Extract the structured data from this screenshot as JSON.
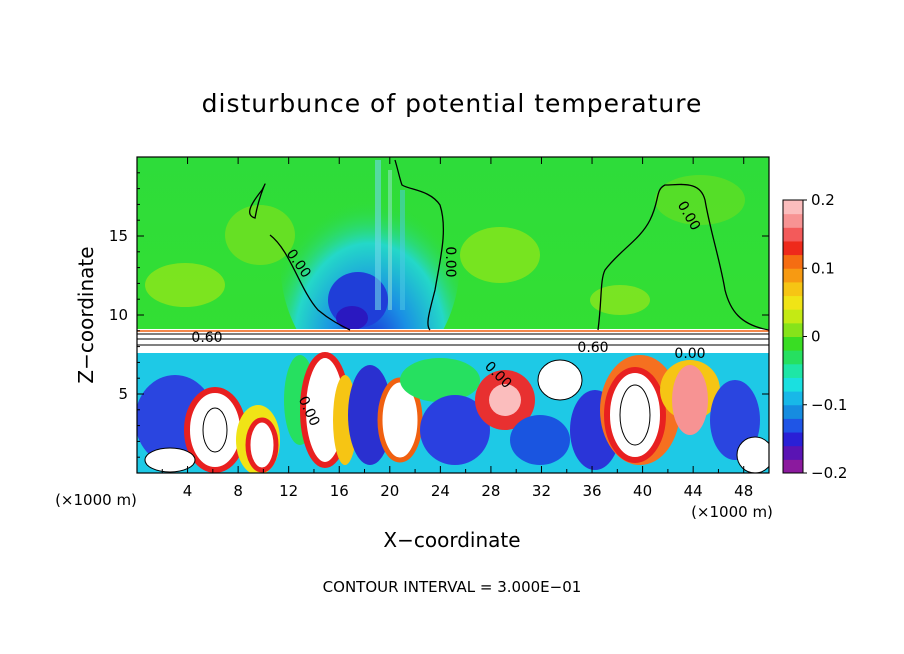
{
  "chart_data": {
    "type": "heatmap",
    "title": "disturbunce of potential temperature",
    "xlabel": "X−coordinate",
    "ylabel": "Z−coordinate",
    "x_unit_left": "(×1000 m)",
    "x_unit_right": "(×1000 m)",
    "xlim": [
      0,
      50
    ],
    "ylim": [
      0,
      20
    ],
    "x_ticks": [
      4,
      8,
      12,
      16,
      20,
      24,
      28,
      32,
      36,
      40,
      44,
      48
    ],
    "x_tick_labels": [
      "4",
      "8",
      "12",
      "16",
      "20",
      "24",
      "28",
      "32",
      "36",
      "40",
      "44",
      "48"
    ],
    "y_ticks": [
      5,
      10,
      15
    ],
    "y_tick_labels": [
      "5",
      "10",
      "15"
    ],
    "colorbar": {
      "range": [
        -0.2,
        0.2
      ],
      "ticks": [
        0.2,
        0.1,
        0,
        -0.1,
        -0.2
      ],
      "tick_labels": [
        "0.2",
        "0.1",
        "0",
        "−0.1",
        "−0.2"
      ],
      "colors": [
        "#8b1a9e",
        "#5a14b4",
        "#2a20d6",
        "#1f55e6",
        "#168ce0",
        "#18b8e8",
        "#1ae0e0",
        "#1ee6a6",
        "#26e060",
        "#39dd23",
        "#86e31a",
        "#c4ea14",
        "#f0e416",
        "#f6c514",
        "#f79a12",
        "#f56d12",
        "#ee2a1b",
        "#f35a5a",
        "#f79393",
        "#fbbdbd"
      ]
    },
    "contour_labels": [
      "0.00",
      "0.00",
      "0.00",
      "0.60",
      "0.60",
      "0.00",
      "0.00",
      "0.00"
    ],
    "footer": "CONTOUR INTERVAL = 3.000E−01"
  }
}
